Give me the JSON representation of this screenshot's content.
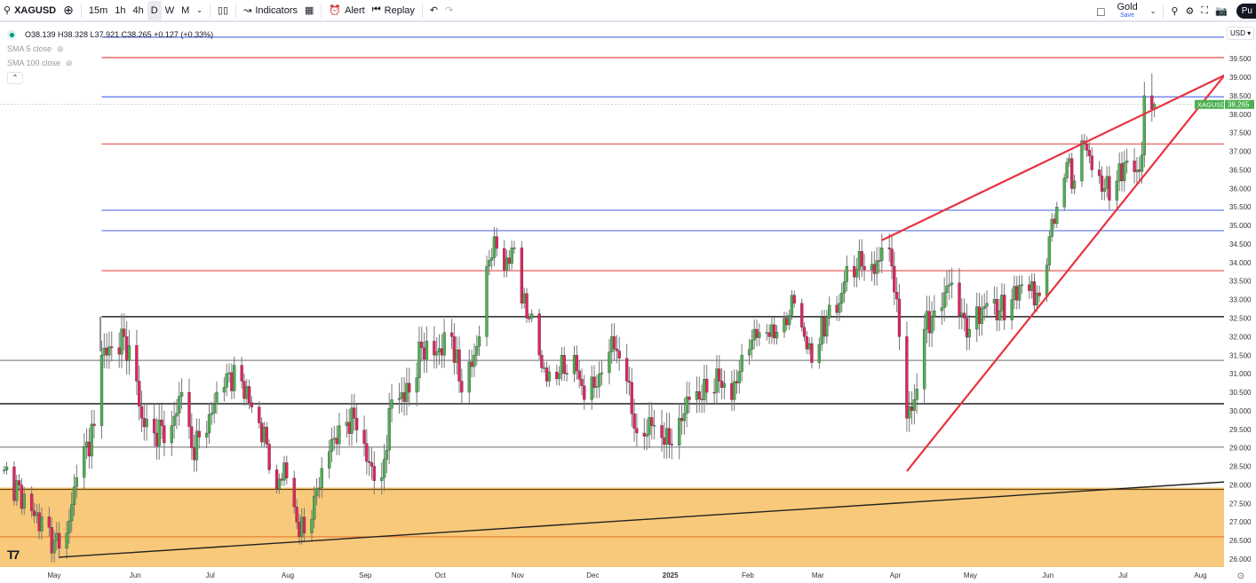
{
  "toolbar": {
    "symbol": "XAGUSD",
    "intervals": [
      "15m",
      "1h",
      "4h",
      "D",
      "W",
      "M"
    ],
    "active_interval": "D",
    "indicators_label": "Indicators",
    "alert_label": "Alert",
    "replay_label": "Replay",
    "layout_name": "Gold",
    "layout_save": "Save",
    "publish_label": "Pu"
  },
  "legend": {
    "ohlc": "O38.139 H38.328 L37.921 C38.265 +0.127 (+0.33%)",
    "sma1": "SMA 5 close",
    "sma2": "SMA 100 close"
  },
  "currency": "USD",
  "colors": {
    "up": "#4caf50",
    "down": "#e0245e",
    "blue": "#5b72e8",
    "red": "#e84c4c",
    "zone": "#f8c97a",
    "trend": "#e8333f"
  },
  "chart_data": {
    "type": "candlestick",
    "symbol": "XAGUSD",
    "last_price_label": "38.265",
    "last_candle": {
      "date": "2025-07-15",
      "open": 38.139,
      "high": 38.328,
      "low": 37.921,
      "close": 38.265
    },
    "ylim": [
      25.8,
      40.2
    ],
    "y_ticks": [
      "39.500",
      "39.000",
      "38.500",
      "38.000",
      "37.500",
      "37.000",
      "36.500",
      "36.000",
      "35.500",
      "35.000",
      "34.500",
      "34.000",
      "33.500",
      "33.000",
      "32.500",
      "32.000",
      "31.500",
      "31.000",
      "30.500",
      "30.000",
      "29.500",
      "29.000",
      "28.500",
      "28.000",
      "27.500",
      "27.000",
      "26.500",
      "26.000"
    ],
    "x_ticks": [
      "May",
      "Jun",
      "Jul",
      "Aug",
      "Sep",
      "Oct",
      "Nov",
      "Dec",
      "2025",
      "Feb",
      "Mar",
      "Apr",
      "May",
      "Jun",
      "Jul",
      "Aug"
    ],
    "closes": [
      [
        "2024-04-11",
        28.4
      ],
      [
        "2024-04-22",
        27.3
      ],
      [
        "2024-05-01",
        26.5
      ],
      [
        "2024-05-06",
        26.7
      ],
      [
        "2024-05-10",
        28.2
      ],
      [
        "2024-05-17",
        29.6
      ],
      [
        "2024-05-20",
        31.5
      ],
      [
        "2024-05-24",
        31.7
      ],
      [
        "2024-05-29",
        32.0
      ],
      [
        "2024-06-03",
        30.8
      ],
      [
        "2024-06-05",
        29.8
      ],
      [
        "2024-06-10",
        29.4
      ],
      [
        "2024-06-17",
        29.6
      ],
      [
        "2024-06-21",
        30.5
      ],
      [
        "2024-06-25",
        29.0
      ],
      [
        "2024-07-01",
        29.4
      ],
      [
        "2024-07-05",
        30.5
      ],
      [
        "2024-07-09",
        31.0
      ],
      [
        "2024-07-15",
        30.8
      ],
      [
        "2024-07-19",
        30.1
      ],
      [
        "2024-07-25",
        29.1
      ],
      [
        "2024-07-29",
        27.9
      ],
      [
        "2024-08-01",
        28.6
      ],
      [
        "2024-08-06",
        27.0
      ],
      [
        "2024-08-09",
        26.7
      ],
      [
        "2024-08-13",
        27.7
      ],
      [
        "2024-08-19",
        28.9
      ],
      [
        "2024-08-23",
        29.6
      ],
      [
        "2024-08-29",
        29.8
      ],
      [
        "2024-09-04",
        28.6
      ],
      [
        "2024-09-09",
        28.2
      ],
      [
        "2024-09-13",
        30.3
      ],
      [
        "2024-09-20",
        30.5
      ],
      [
        "2024-09-25",
        31.7
      ],
      [
        "2024-09-30",
        31.5
      ],
      [
        "2024-10-07",
        32.0
      ],
      [
        "2024-10-11",
        30.5
      ],
      [
        "2024-10-16",
        31.5
      ],
      [
        "2024-10-18",
        32.0
      ],
      [
        "2024-10-21",
        33.9
      ],
      [
        "2024-10-24",
        34.7
      ],
      [
        "2024-10-28",
        33.8
      ],
      [
        "2024-11-01",
        34.4
      ],
      [
        "2024-11-04",
        32.9
      ],
      [
        "2024-11-07",
        32.5
      ],
      [
        "2024-11-11",
        31.5
      ],
      [
        "2024-11-14",
        30.8
      ],
      [
        "2024-11-19",
        31.0
      ],
      [
        "2024-11-25",
        31.5
      ],
      [
        "2024-11-29",
        30.3
      ],
      [
        "2024-12-05",
        31.0
      ],
      [
        "2024-12-10",
        32.0
      ],
      [
        "2024-12-16",
        30.8
      ],
      [
        "2024-12-20",
        29.4
      ],
      [
        "2024-12-26",
        29.6
      ],
      [
        "2025-01-02",
        29.1
      ],
      [
        "2025-01-06",
        29.8
      ],
      [
        "2025-01-10",
        30.3
      ],
      [
        "2025-01-17",
        30.5
      ],
      [
        "2025-01-22",
        30.8
      ],
      [
        "2025-01-27",
        30.3
      ],
      [
        "2025-01-31",
        31.5
      ],
      [
        "2025-02-05",
        32.2
      ],
      [
        "2025-02-11",
        32.0
      ],
      [
        "2025-02-17",
        32.5
      ],
      [
        "2025-02-21",
        32.9
      ],
      [
        "2025-02-25",
        32.0
      ],
      [
        "2025-02-28",
        31.3
      ],
      [
        "2025-03-06",
        32.5
      ],
      [
        "2025-03-11",
        32.9
      ],
      [
        "2025-03-14",
        33.9
      ],
      [
        "2025-03-20",
        33.9
      ],
      [
        "2025-03-25",
        33.7
      ],
      [
        "2025-03-28",
        34.4
      ],
      [
        "2025-04-01",
        33.9
      ],
      [
        "2025-04-04",
        32.0
      ],
      [
        "2025-04-07",
        29.8
      ],
      [
        "2025-04-10",
        30.3
      ],
      [
        "2025-04-14",
        32.2
      ],
      [
        "2025-04-18",
        32.7
      ],
      [
        "2025-04-24",
        33.4
      ],
      [
        "2025-04-30",
        32.5
      ],
      [
        "2025-05-02",
        32.2
      ],
      [
        "2025-05-09",
        32.9
      ],
      [
        "2025-05-14",
        32.7
      ],
      [
        "2025-05-19",
        33.0
      ],
      [
        "2025-05-23",
        33.4
      ],
      [
        "2025-05-30",
        33.1
      ],
      [
        "2025-06-03",
        34.7
      ],
      [
        "2025-06-06",
        35.5
      ],
      [
        "2025-06-10",
        36.7
      ],
      [
        "2025-06-13",
        36.2
      ],
      [
        "2025-06-17",
        37.2
      ],
      [
        "2025-06-20",
        36.5
      ],
      [
        "2025-06-25",
        36.0
      ],
      [
        "2025-06-30",
        36.2
      ],
      [
        "2025-07-03",
        36.7
      ],
      [
        "2025-07-08",
        36.5
      ],
      [
        "2025-07-10",
        36.9
      ],
      [
        "2025-07-11",
        38.5
      ],
      [
        "2025-07-14",
        38.14
      ]
    ],
    "horizontal_levels": [
      {
        "price": 40.08,
        "color": "blue",
        "from": "2024-05-20"
      },
      {
        "price": 39.53,
        "color": "red",
        "from": "2024-05-20"
      },
      {
        "price": 38.47,
        "color": "blue",
        "from": "2024-05-20"
      },
      {
        "price": 37.2,
        "color": "red",
        "from": "2024-05-20"
      },
      {
        "price": 35.41,
        "color": "blue",
        "from": "2024-05-20"
      },
      {
        "price": 34.86,
        "color": "blue",
        "from": "2024-05-20"
      },
      {
        "price": 33.78,
        "color": "red",
        "from": "2024-05-20"
      },
      {
        "price": 32.54,
        "color": "black",
        "from": "2024-05-20"
      },
      {
        "price": 31.36,
        "color": "gray"
      },
      {
        "price": 30.19,
        "color": "black"
      },
      {
        "price": 29.02,
        "color": "gray"
      },
      {
        "price": 27.88,
        "color": "brown"
      },
      {
        "price": 26.6,
        "color": "orange"
      }
    ],
    "zone": {
      "from_price": 25.8,
      "to_price": 27.93
    },
    "trendlines": [
      {
        "color": "red",
        "from": [
          "2025-03-28",
          34.6
        ],
        "to": [
          "2025-08-12",
          39.05
        ]
      },
      {
        "color": "red",
        "from": [
          "2025-04-07",
          28.37
        ],
        "to": [
          "2025-08-12",
          39.05
        ]
      },
      {
        "color": "black",
        "from": [
          "2024-05-03",
          26.05
        ],
        "to": [
          "2025-08-12",
          28.08
        ]
      }
    ]
  }
}
